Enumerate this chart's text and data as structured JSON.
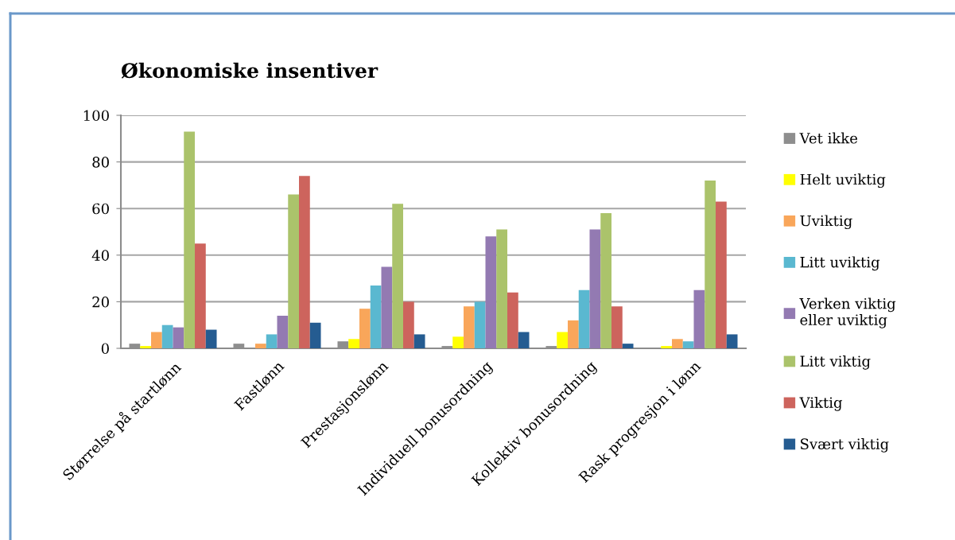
{
  "chart_data": {
    "type": "bar",
    "title": "Økonomiske insentiver",
    "categories": [
      "Størrelse på startlønn",
      "Fastlønn",
      "Prestasjonslønn",
      "Individuell bonusordning",
      "Kollektiv bonusordning",
      "Rask progresjon i lønn"
    ],
    "series": [
      {
        "name": "Vet ikke",
        "color": "#8e8e8e",
        "values": [
          2,
          2,
          3,
          1,
          1,
          0
        ]
      },
      {
        "name": "Helt uviktig",
        "color": "#ffff00",
        "values": [
          1,
          0,
          4,
          5,
          7,
          1
        ]
      },
      {
        "name": "Uviktig",
        "color": "#f9a65a",
        "values": [
          7,
          2,
          17,
          18,
          12,
          4
        ]
      },
      {
        "name": "Litt uviktig",
        "color": "#5ab8d0",
        "values": [
          10,
          6,
          27,
          20,
          25,
          3
        ]
      },
      {
        "name": "Verken viktig\neller uviktig",
        "color": "#937ab2",
        "values": [
          9,
          14,
          35,
          48,
          51,
          25
        ]
      },
      {
        "name": "Litt viktig",
        "color": "#abc36b",
        "values": [
          93,
          66,
          62,
          51,
          58,
          72
        ]
      },
      {
        "name": "Viktig",
        "color": "#cd645d",
        "values": [
          45,
          74,
          20,
          24,
          18,
          63
        ]
      },
      {
        "name": "Svært viktig",
        "color": "#255c91",
        "values": [
          8,
          11,
          6,
          7,
          2,
          6
        ]
      }
    ],
    "ylim": [
      0,
      100
    ],
    "yticks": [
      0,
      20,
      40,
      60,
      80,
      100
    ],
    "grid": "y",
    "legend": "right"
  }
}
